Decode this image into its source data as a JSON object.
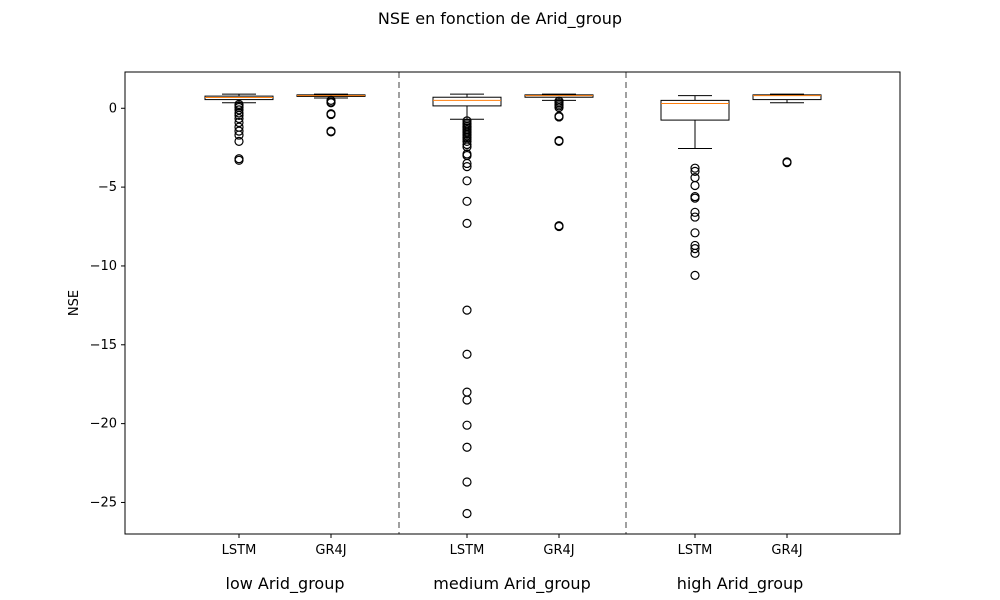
{
  "chart_data": {
    "type": "boxplot",
    "title": "NSE en fonction de Arid_group",
    "ylabel": "NSE",
    "ylim": [
      -27,
      2.3
    ],
    "yticks": [
      0,
      -5,
      -10,
      -15,
      -20,
      -25
    ],
    "ytick_labels": [
      "0",
      "−5",
      "−10",
      "−15",
      "−20",
      "−25"
    ],
    "groups": [
      "low Arid_group",
      "medium Arid_group",
      "high Arid_group"
    ],
    "boxes": [
      {
        "group": "low Arid_group",
        "label": "LSTM",
        "q1": 0.55,
        "median": 0.68,
        "q3": 0.77,
        "whisker_low": 0.35,
        "whisker_high": 0.9,
        "outliers": [
          0.25,
          0.15,
          0.05,
          -0.1,
          -0.3,
          -0.45,
          -0.65,
          -0.9,
          -1.2,
          -1.45,
          -1.7,
          -2.1,
          -3.2,
          -3.3
        ]
      },
      {
        "group": "low Arid_group",
        "label": "GR4J",
        "q1": 0.75,
        "median": 0.8,
        "q3": 0.85,
        "whisker_low": 0.65,
        "whisker_high": 0.9,
        "outliers": [
          0.5,
          0.4,
          0.35,
          -0.35,
          -0.4,
          -1.45,
          -1.5
        ]
      },
      {
        "group": "medium Arid_group",
        "label": "LSTM",
        "q1": 0.15,
        "median": 0.5,
        "q3": 0.7,
        "whisker_low": -0.7,
        "whisker_high": 0.9,
        "outliers": [
          -0.8,
          -0.95,
          -1.05,
          -1.15,
          -1.25,
          -1.35,
          -1.45,
          -1.55,
          -1.65,
          -1.75,
          -1.85,
          -1.95,
          -2.1,
          -2.3,
          -2.45,
          -2.9,
          -3.0,
          -3.5,
          -3.7,
          -4.6,
          -5.9,
          -7.3,
          -12.8,
          -15.6,
          -18.0,
          -18.5,
          -20.1,
          -21.5,
          -23.7,
          -25.7
        ]
      },
      {
        "group": "medium Arid_group",
        "label": "GR4J",
        "q1": 0.7,
        "median": 0.8,
        "q3": 0.85,
        "whisker_low": 0.5,
        "whisker_high": 0.9,
        "outliers": [
          0.45,
          0.35,
          0.25,
          0.15,
          0.05,
          -0.5,
          -0.55,
          -2.05,
          -2.1,
          -7.45,
          -7.5
        ]
      },
      {
        "group": "high Arid_group",
        "label": "LSTM",
        "q1": -0.75,
        "median": 0.3,
        "q3": 0.5,
        "whisker_low": -2.55,
        "whisker_high": 0.8,
        "outliers": [
          -3.8,
          -4.0,
          -4.4,
          -4.9,
          -5.6,
          -5.7,
          -6.6,
          -6.9,
          -7.9,
          -8.7,
          -8.9,
          -9.2,
          -10.6
        ]
      },
      {
        "group": "high Arid_group",
        "label": "GR4J",
        "q1": 0.55,
        "median": 0.8,
        "q3": 0.85,
        "whisker_low": 0.35,
        "whisker_high": 0.9,
        "outliers": [
          -3.4,
          -3.45
        ]
      }
    ],
    "separators_between_groups": true,
    "grid": false,
    "colors": {
      "box": "#000000",
      "median": "#ff7f0e",
      "separator": "#808080"
    }
  }
}
